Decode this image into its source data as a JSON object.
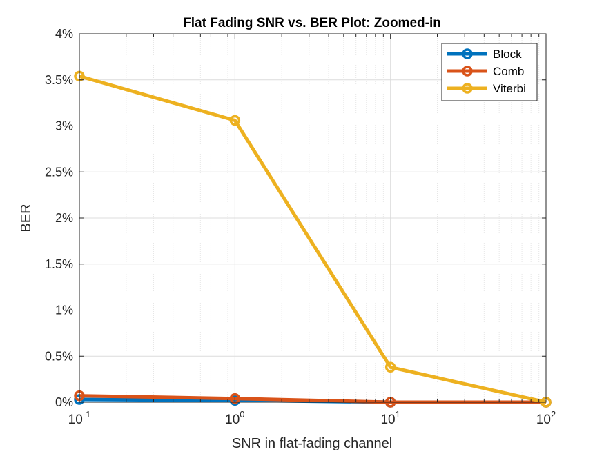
{
  "chart_data": {
    "type": "line",
    "title": "Flat Fading SNR vs. BER Plot: Zoomed-in",
    "xlabel": "SNR in flat-fading channel",
    "ylabel": "BER",
    "xscale": "log",
    "xlim": [
      0.1,
      100
    ],
    "ylim": [
      0,
      4
    ],
    "xticks": [
      0.1,
      1,
      10,
      100
    ],
    "xtick_labels": [
      {
        "base": "10",
        "exp": "-1"
      },
      {
        "base": "10",
        "exp": "0"
      },
      {
        "base": "10",
        "exp": "1"
      },
      {
        "base": "10",
        "exp": "2"
      }
    ],
    "yticks": [
      0,
      0.5,
      1,
      1.5,
      2,
      2.5,
      3,
      3.5,
      4
    ],
    "ytick_labels": [
      "0%",
      "0.5%",
      "1%",
      "1.5%",
      "2%",
      "2.5%",
      "3%",
      "3.5%",
      "4%"
    ],
    "grid": true,
    "legend_position": "top-right",
    "x": [
      0.1,
      1,
      10,
      100
    ],
    "series": [
      {
        "name": "Block",
        "color": "#0072BD",
        "values": [
          0.03,
          0.02,
          0.0,
          0.0
        ]
      },
      {
        "name": "Comb",
        "color": "#D95319",
        "values": [
          0.07,
          0.04,
          0.0,
          0.0
        ]
      },
      {
        "name": "Viterbi",
        "color": "#EDB120",
        "values": [
          3.54,
          3.06,
          0.38,
          0.0
        ]
      }
    ]
  }
}
